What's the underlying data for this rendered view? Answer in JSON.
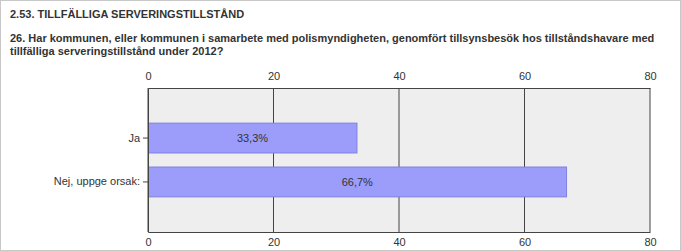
{
  "chart_data": {
    "type": "bar",
    "title": "2.53. TILLFÄLLIGA SERVERINGSTILLSTÅND",
    "subtitle": "26. Har kommunen, eller kommunen i samarbete med polismyndigheten, genomfört tillsynsbesök hos tillståndshavare med tillfälliga serveringstillstånd under 2012?",
    "categories": [
      "Ja",
      "Nej, uppge orsak:"
    ],
    "values": [
      33.3,
      66.7
    ],
    "value_labels": [
      "33,3%",
      "66,7%"
    ],
    "color": "#9c9cfa",
    "orientation": "horizontal",
    "xlim": [
      0,
      80
    ],
    "xticks": [
      0,
      20,
      40,
      60,
      80
    ],
    "grid": true,
    "data_labels": true
  }
}
